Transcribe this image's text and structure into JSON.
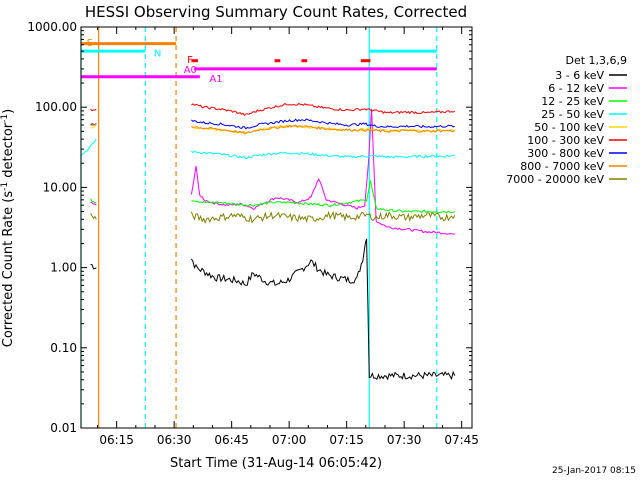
{
  "chart_data": {
    "type": "line",
    "title": "HESSI Observing Summary Count Rates, Corrected",
    "xlabel": "Start Time (31-Aug-14 06:05:42)",
    "ylabel_prefix": "Corrected Count Rate (s",
    "ylabel_sup": "-1",
    "ylabel_suffix": " detector",
    "ylabel_sup2": "-1",
    "ylabel_close": ")",
    "y_scale": "log",
    "ylim": [
      0.01,
      1000
    ],
    "xlim_minutes": [
      0,
      102
    ],
    "x_ticks": [
      {
        "label": "06:15",
        "m": 9.3
      },
      {
        "label": "06:30",
        "m": 24.3
      },
      {
        "label": "06:45",
        "m": 39.3
      },
      {
        "label": "07:00",
        "m": 54.3
      },
      {
        "label": "07:15",
        "m": 69.3
      },
      {
        "label": "07:30",
        "m": 84.3
      },
      {
        "label": "07:45",
        "m": 99.3
      }
    ],
    "y_ticks": [
      {
        "label": "1000.00",
        "v": 1000
      },
      {
        "label": "100.00",
        "v": 100
      },
      {
        "label": "10.00",
        "v": 10
      },
      {
        "label": "1.00",
        "v": 1
      },
      {
        "label": "0.10",
        "v": 0.1
      },
      {
        "label": "0.01",
        "v": 0.01
      }
    ],
    "legend_title": "Det 1,3,6,9",
    "series": [
      {
        "name": "3 - 6 keV",
        "color": "#000000",
        "x": [
          2.5,
          4.0,
          28.8,
          30.0,
          32.0,
          35.0,
          38.0,
          41.0,
          43.0,
          45.0,
          48.0,
          51.0,
          54.0,
          57.0,
          60.0,
          62.0,
          64.0,
          67.0,
          70.0,
          72.0,
          73.5,
          74.5,
          75.2,
          80.0,
          85.0,
          90.0,
          95.0,
          97.5
        ],
        "y": [
          1.1,
          1.0,
          1.3,
          1.0,
          0.9,
          0.75,
          0.72,
          0.68,
          0.62,
          0.85,
          0.68,
          0.62,
          0.7,
          0.9,
          1.2,
          0.95,
          0.82,
          0.75,
          0.7,
          0.72,
          1.3,
          2.5,
          0.045,
          0.045,
          0.045,
          0.045,
          0.045,
          0.045
        ]
      },
      {
        "name": "6 - 12 keV",
        "color": "#ff00ff",
        "x": [
          2.5,
          4.0,
          28.8,
          30.0,
          31.0,
          32.0,
          34.0,
          38.0,
          42.0,
          45.0,
          48.0,
          51.0,
          54.0,
          57.0,
          60.0,
          62.0,
          64.0,
          68.0,
          72.0,
          74.0,
          75.0,
          75.8,
          77.0,
          80.0,
          85.0,
          90.0,
          95.0,
          97.5
        ],
        "y": [
          6.5,
          6.0,
          8.0,
          18.0,
          8.0,
          7.0,
          6.5,
          6.0,
          6.2,
          5.5,
          6.5,
          7.5,
          7.0,
          6.5,
          7.5,
          13.0,
          7.0,
          6.2,
          5.5,
          6.0,
          20.0,
          95.0,
          3.8,
          3.2,
          3.0,
          2.8,
          2.7,
          2.6
        ]
      },
      {
        "name": "12 - 25 keV",
        "color": "#00ff00",
        "x": [
          2.5,
          4.0,
          28.8,
          32.0,
          36.0,
          40.0,
          45.0,
          50.0,
          55.0,
          60.0,
          65.0,
          70.0,
          74.5,
          75.5,
          77.0,
          80.0,
          85.0,
          90.0,
          95.0,
          97.5
        ],
        "y": [
          7.0,
          6.5,
          7.0,
          6.5,
          6.5,
          6.2,
          6.0,
          6.5,
          6.5,
          6.2,
          6.0,
          6.5,
          7.0,
          12.0,
          5.5,
          5.2,
          5.0,
          5.0,
          5.0,
          5.0
        ]
      },
      {
        "name": "25 - 50 keV",
        "color": "#00ffff",
        "x": [
          0.0,
          2.5,
          4.0,
          28.8,
          32.0,
          36.0,
          40.0,
          43.0,
          46.0,
          50.0,
          54.0,
          58.0,
          62.0,
          66.0,
          70.0,
          74.0,
          77.0,
          80.0,
          85.0,
          90.0,
          95.0,
          97.5
        ],
        "y": [
          25.0,
          32.0,
          40.0,
          28.0,
          27.0,
          26.0,
          24.5,
          23.5,
          25.0,
          26.5,
          27.0,
          26.5,
          25.5,
          24.5,
          24.0,
          24.5,
          24.5,
          24.0,
          24.0,
          24.5,
          24.5,
          25.0
        ]
      },
      {
        "name": "50 - 100 keV",
        "color": "#ffd800",
        "x": [
          2.5,
          4.0,
          28.8,
          32.0,
          36.0,
          40.0,
          43.0,
          46.0,
          50.0,
          54.0,
          58.0,
          62.0,
          66.0,
          70.0,
          74.0,
          77.0,
          80.0,
          85.0,
          90.0,
          95.0,
          97.5
        ],
        "y": [
          55.0,
          60.0,
          57.0,
          54.0,
          52.0,
          50.0,
          48.0,
          52.0,
          56.0,
          58.0,
          57.0,
          55.0,
          53.0,
          52.0,
          53.0,
          52.0,
          51.0,
          52.0,
          51.0,
          52.0,
          52.0
        ]
      },
      {
        "name": "100 - 300 keV",
        "color": "#ff0000",
        "x": [
          2.5,
          4.0,
          28.8,
          32.0,
          36.0,
          40.0,
          43.0,
          46.0,
          50.0,
          54.0,
          58.0,
          62.0,
          66.0,
          70.0,
          74.0,
          77.0,
          80.0,
          85.0,
          90.0,
          95.0,
          97.5
        ],
        "y": [
          92.0,
          95.0,
          110.0,
          100.0,
          95.0,
          88.0,
          80.0,
          90.0,
          100.0,
          110.0,
          108.0,
          100.0,
          95.0,
          92.0,
          95.0,
          90.0,
          85.0,
          87.0,
          85.0,
          88.0,
          90.0
        ]
      },
      {
        "name": "300 - 800 keV",
        "color": "#0000ff",
        "x": [
          2.5,
          4.0,
          28.8,
          32.0,
          36.0,
          40.0,
          43.0,
          46.0,
          50.0,
          54.0,
          58.0,
          62.0,
          66.0,
          70.0,
          74.0,
          77.0,
          80.0,
          85.0,
          90.0,
          95.0,
          97.5
        ],
        "y": [
          60.0,
          63.0,
          68.0,
          64.0,
          62.0,
          58.0,
          55.0,
          60.0,
          64.0,
          68.0,
          70.0,
          66.0,
          62.0,
          60.0,
          62.0,
          58.0,
          57.0,
          58.0,
          57.0,
          58.0,
          58.0
        ]
      },
      {
        "name": "800 - 7000 keV",
        "color": "#ff8000",
        "x": [
          2.5,
          4.0,
          28.8,
          32.0,
          36.0,
          40.0,
          43.0,
          46.0,
          50.0,
          54.0,
          58.0,
          62.0,
          66.0,
          70.0,
          74.0,
          77.0,
          80.0,
          85.0,
          90.0,
          95.0,
          97.5
        ],
        "y": [
          58.0,
          62.0,
          58.0,
          55.0,
          53.0,
          50.0,
          47.0,
          52.0,
          55.0,
          58.0,
          58.0,
          55.0,
          53.0,
          52.0,
          52.0,
          51.0,
          50.0,
          51.0,
          50.0,
          51.0,
          51.0
        ]
      },
      {
        "name": "7000 - 20000 keV",
        "color": "#808000",
        "x": [
          2.5,
          4.0,
          28.8,
          32.0,
          36.0,
          40.0,
          45.0,
          50.0,
          55.0,
          60.0,
          65.0,
          70.0,
          74.5,
          77.0,
          80.0,
          85.0,
          90.0,
          95.0,
          97.5
        ],
        "y": [
          4.5,
          4.0,
          4.5,
          4.0,
          4.2,
          4.5,
          4.0,
          4.5,
          4.2,
          4.0,
          4.5,
          4.2,
          4.5,
          4.2,
          4.5,
          4.2,
          4.5,
          4.2,
          4.5
        ]
      }
    ],
    "vertical_lines": [
      {
        "m": 0.0,
        "color": "#00ffff",
        "style": "solid"
      },
      {
        "m": 4.6,
        "color": "#ff8000",
        "style": "solid"
      },
      {
        "m": 16.8,
        "color": "#00ffff",
        "style": "dashed"
      },
      {
        "m": 24.8,
        "color": "#ff8000",
        "style": "dashed"
      },
      {
        "m": 75.2,
        "color": "#00ffff",
        "style": "solid"
      },
      {
        "m": 92.8,
        "color": "#00ffff",
        "style": "dashed"
      }
    ],
    "flags": [
      {
        "label": "S",
        "color": "#ff8000",
        "x1": 0.0,
        "x2": 24.8,
        "v": 620,
        "label_m": 1.5,
        "label_v": 650
      },
      {
        "label": "N",
        "color": "#00ffff",
        "x1": 0.0,
        "x2": 16.8,
        "v": 500,
        "label_m": 19.0,
        "label_v": 480
      },
      {
        "label": "N",
        "color": "#00ffff",
        "x1": 75.2,
        "x2": 92.8,
        "v": 500,
        "label_m": 0,
        "label_v": 0,
        "hide_label": true
      },
      {
        "label": "F",
        "color": "#ff0000",
        "x1": 28.8,
        "x2": 30.5,
        "v": 380,
        "label_m": 27.7,
        "label_v": 400
      },
      {
        "label": "",
        "color": "#ff0000",
        "x1": 50.5,
        "x2": 52.0,
        "v": 380,
        "hide_label": true
      },
      {
        "label": "",
        "color": "#ff0000",
        "x1": 57.5,
        "x2": 59.0,
        "v": 380,
        "hide_label": true
      },
      {
        "label": "",
        "color": "#ff0000",
        "x1": 73.0,
        "x2": 75.5,
        "v": 380,
        "hide_label": true
      },
      {
        "label": "A0",
        "color": "#ff00ff",
        "x1": 29.5,
        "x2": 92.8,
        "v": 300,
        "label_m": 26.8,
        "label_v": 300
      },
      {
        "label": "A1",
        "color": "#ff00ff",
        "x1": 0.0,
        "x2": 31.0,
        "v": 240,
        "label_m": 33.5,
        "label_v": 230
      }
    ]
  },
  "footer": {
    "date_stamp": "25-Jan-2017 08:15"
  }
}
